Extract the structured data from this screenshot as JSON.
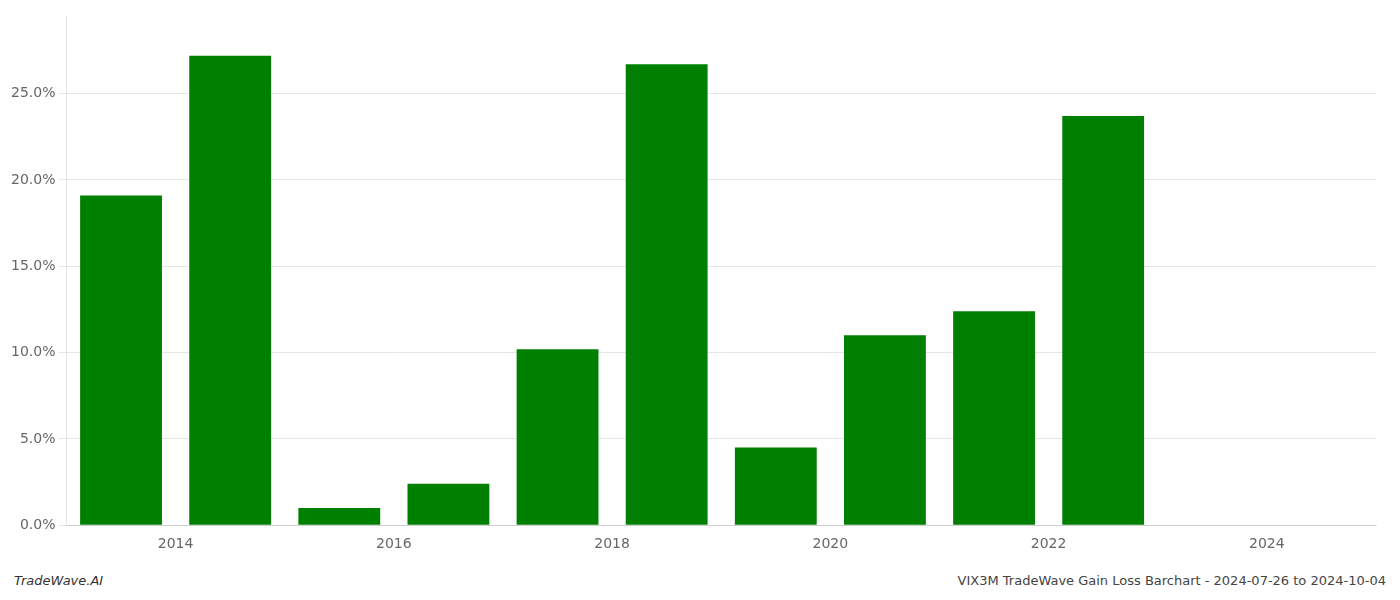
{
  "chart_data": {
    "type": "bar",
    "x": [
      2013.5,
      2014.5,
      2015.5,
      2016.5,
      2017.5,
      2018.5,
      2019.5,
      2020.5,
      2021.5,
      2022.5
    ],
    "values": [
      0.191,
      0.272,
      0.01,
      0.024,
      0.102,
      0.267,
      0.045,
      0.11,
      0.124,
      0.237
    ],
    "color": "#008000",
    "xlim": [
      2013.0,
      2025.0
    ],
    "ylim": [
      0.0,
      0.295
    ],
    "xticks": [
      2014,
      2016,
      2018,
      2020,
      2022,
      2024
    ],
    "yticks": [
      {
        "value": 0.0,
        "label": "0.0%"
      },
      {
        "value": 0.05,
        "label": "5.0%"
      },
      {
        "value": 0.1,
        "label": "10.0%"
      },
      {
        "value": 0.15,
        "label": "15.0%"
      },
      {
        "value": 0.2,
        "label": "20.0%"
      },
      {
        "value": 0.25,
        "label": "25.0%"
      }
    ],
    "grid": true,
    "annotations": [
      "TradeWave.AI",
      "VIX3M TradeWave Gain Loss Barchart - 2024-07-26 to 2024-10-04"
    ]
  }
}
